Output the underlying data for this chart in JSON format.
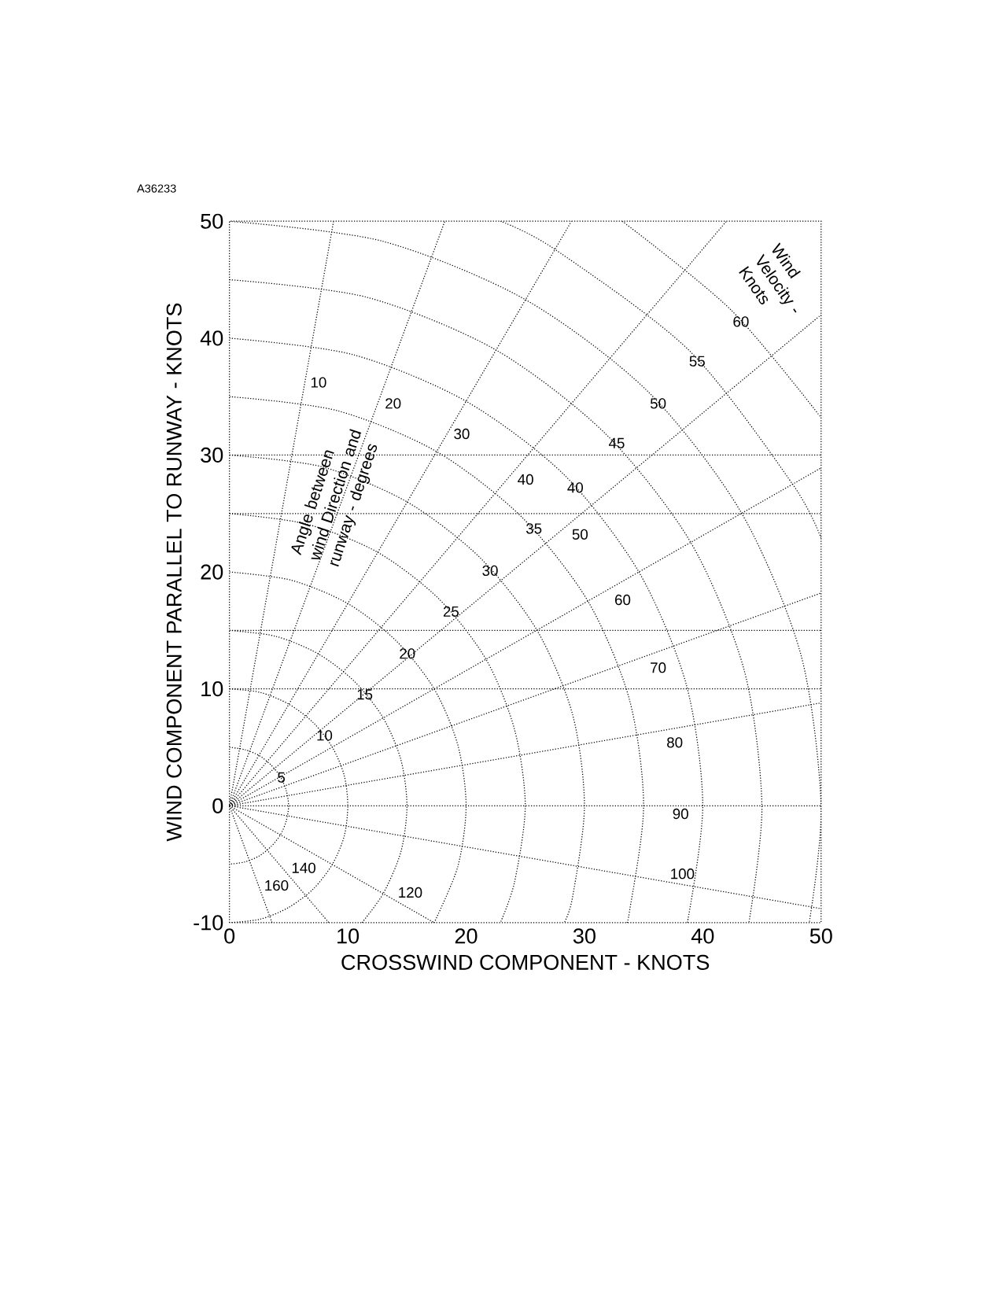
{
  "chart_data": {
    "type": "line",
    "xlabel": "CROSSWIND COMPONENT  -  KNOTS",
    "ylabel": "WIND COMPONENT PARALLEL TO RUNWAY  -  KNOTS",
    "xlim": [
      0,
      50
    ],
    "ylim": [
      -10,
      50
    ],
    "xticks": [
      0,
      10,
      20,
      30,
      40,
      50
    ],
    "yticks": [
      -10,
      0,
      10,
      20,
      30,
      40,
      50
    ],
    "line_style": "dotted",
    "ref_lines": [
      {
        "axis": "y",
        "value": 10
      },
      {
        "axis": "y",
        "value": 15
      },
      {
        "axis": "y",
        "value": 25
      },
      {
        "axis": "y",
        "value": 30
      }
    ],
    "series": [
      {
        "color": "#000000",
        "x": [
          0,
          1.3,
          2.5,
          3.5,
          4.3,
          4.8,
          5,
          4.8,
          4.3,
          3.5,
          2.5,
          1.3,
          0
        ],
        "values": [
          5,
          4.8,
          4.3,
          3.5,
          2.5,
          1.3,
          0,
          -1.3,
          -2.5,
          -3.5,
          -4.3,
          -4.8,
          -5
        ]
      },
      {
        "color": "#000000",
        "x": [
          0,
          2.6,
          5,
          7.1,
          8.7,
          9.7,
          10,
          9.7,
          8.7,
          7.1,
          5,
          2.6,
          0
        ],
        "values": [
          10,
          9.7,
          8.7,
          7.1,
          5,
          2.6,
          0,
          -2.6,
          -5,
          -7.1,
          -8.7,
          -9.7,
          -10
        ]
      },
      {
        "color": "#000000",
        "x": [
          0,
          3.9,
          7.5,
          10.6,
          13,
          14.5,
          15,
          14.5,
          13,
          11.2
        ],
        "values": [
          15,
          14.5,
          13,
          10.6,
          7.5,
          3.9,
          0,
          -3.9,
          -7.5,
          -10
        ]
      },
      {
        "color": "#000000",
        "x": [
          0,
          5.2,
          10,
          14.1,
          17.3,
          19.3,
          20,
          19.3,
          17.3
        ],
        "values": [
          20,
          19.3,
          17.3,
          14.1,
          10,
          5.2,
          0,
          -5.2,
          -10
        ]
      },
      {
        "color": "#000000",
        "x": [
          0,
          6.5,
          12.5,
          17.7,
          21.7,
          24.1,
          25,
          24.1,
          22.9
        ],
        "values": [
          25,
          24.1,
          21.7,
          17.7,
          12.5,
          6.5,
          0,
          -6.5,
          -10
        ]
      },
      {
        "color": "#000000",
        "x": [
          0,
          7.8,
          15,
          21.2,
          26,
          29,
          30,
          29,
          28.3
        ],
        "values": [
          30,
          29,
          26,
          21.2,
          15,
          7.8,
          0,
          -7.8,
          -10
        ]
      },
      {
        "color": "#000000",
        "x": [
          0,
          9.1,
          17.5,
          24.7,
          30.3,
          33.8,
          35,
          33.8,
          33.5
        ],
        "values": [
          35,
          33.8,
          30.3,
          24.7,
          17.5,
          9.1,
          0,
          -9.1,
          -10
        ]
      },
      {
        "color": "#000000",
        "x": [
          0,
          10.4,
          20,
          28.3,
          34.6,
          38.6,
          40,
          38.7
        ],
        "values": [
          40,
          38.6,
          34.6,
          28.3,
          20,
          10.4,
          0,
          -10
        ]
      },
      {
        "color": "#000000",
        "x": [
          0,
          11.6,
          22.5,
          31.8,
          39,
          43.5,
          45,
          43.9
        ],
        "values": [
          45,
          43.5,
          39,
          31.8,
          22.5,
          11.6,
          0,
          -10
        ]
      },
      {
        "color": "#000000",
        "x": [
          0,
          12.9,
          25,
          35.4,
          43.3,
          48.3,
          50,
          49
        ],
        "values": [
          50,
          48.3,
          43.3,
          35.4,
          25,
          12.9,
          0,
          -10
        ]
      },
      {
        "color": "#000000",
        "x": [
          22.9,
          27.5,
          38.9,
          47.6,
          50
        ],
        "values": [
          50,
          47.6,
          38.9,
          27.5,
          22.9
        ]
      },
      {
        "color": "#000000",
        "x": [
          33.2,
          42.4,
          50
        ],
        "values": [
          50,
          42.4,
          33.2
        ]
      },
      {
        "color": "#000000",
        "x": [
          0,
          8.8
        ],
        "values": [
          0,
          50
        ]
      },
      {
        "color": "#000000",
        "x": [
          0,
          18.2
        ],
        "values": [
          0,
          50
        ]
      },
      {
        "color": "#000000",
        "x": [
          0,
          28.9
        ],
        "values": [
          0,
          50
        ]
      },
      {
        "color": "#000000",
        "x": [
          0,
          42
        ],
        "values": [
          0,
          50
        ]
      },
      {
        "color": "#000000",
        "x": [
          0,
          50
        ],
        "values": [
          0,
          42
        ]
      },
      {
        "color": "#000000",
        "x": [
          0,
          50
        ],
        "values": [
          0,
          28.9
        ]
      },
      {
        "color": "#000000",
        "x": [
          0,
          50
        ],
        "values": [
          0,
          18.2
        ]
      },
      {
        "color": "#000000",
        "x": [
          0,
          50
        ],
        "values": [
          0,
          8.8
        ]
      },
      {
        "color": "#000000",
        "x": [
          0,
          50
        ],
        "values": [
          0,
          0
        ]
      },
      {
        "color": "#000000",
        "x": [
          0,
          50
        ],
        "values": [
          0,
          -8.8
        ]
      },
      {
        "color": "#000000",
        "x": [
          0,
          17.3
        ],
        "values": [
          0,
          -10
        ]
      },
      {
        "color": "#000000",
        "x": [
          0,
          8.4
        ],
        "values": [
          0,
          -10
        ]
      },
      {
        "color": "#000000",
        "x": [
          0,
          3.6
        ],
        "values": [
          0,
          -10
        ]
      }
    ],
    "annotations": [
      "A36233",
      "Angle between wind Direction and runway - degrees",
      "Wind Velocity - Knots",
      {
        "text": "5",
        "x": 3.8,
        "y": 3.1
      },
      {
        "text": "10",
        "x": 7.1,
        "y": 6.7
      },
      {
        "text": "15",
        "x": 10.5,
        "y": 10.2
      },
      {
        "text": "20",
        "x": 14.1,
        "y": 13.7
      },
      {
        "text": "25",
        "x": 17.8,
        "y": 17.3
      },
      {
        "text": "30",
        "x": 21.1,
        "y": 20.8
      },
      {
        "text": "35",
        "x": 24.8,
        "y": 24.4
      },
      {
        "text": "40",
        "x": 28.3,
        "y": 27.9
      },
      {
        "text": "45",
        "x": 31.8,
        "y": 31.7
      },
      {
        "text": "50",
        "x": 35.3,
        "y": 35.1
      },
      {
        "text": "55",
        "x": 38.6,
        "y": 38.7
      },
      {
        "text": "60",
        "x": 42.3,
        "y": 42.1
      },
      {
        "text": "10",
        "x": 6.6,
        "y": 36.9
      },
      {
        "text": "20",
        "x": 12.9,
        "y": 35.1
      },
      {
        "text": "30",
        "x": 18.7,
        "y": 32.5
      },
      {
        "text": "40",
        "x": 24.1,
        "y": 28.6
      },
      {
        "text": "50",
        "x": 28.7,
        "y": 23.9
      },
      {
        "text": "60",
        "x": 32.3,
        "y": 18.3
      },
      {
        "text": "70",
        "x": 35.3,
        "y": 12.5
      },
      {
        "text": "80",
        "x": 36.7,
        "y": 6.1
      },
      {
        "text": "90",
        "x": 37.2,
        "y": 0
      },
      {
        "text": "100",
        "x": 37,
        "y": -6.5
      },
      {
        "text": "120",
        "x": 14,
        "y": -8.1
      },
      {
        "text": "140",
        "x": 5,
        "y": -6
      },
      {
        "text": "160",
        "x": 2.7,
        "y": -7.5
      }
    ]
  }
}
